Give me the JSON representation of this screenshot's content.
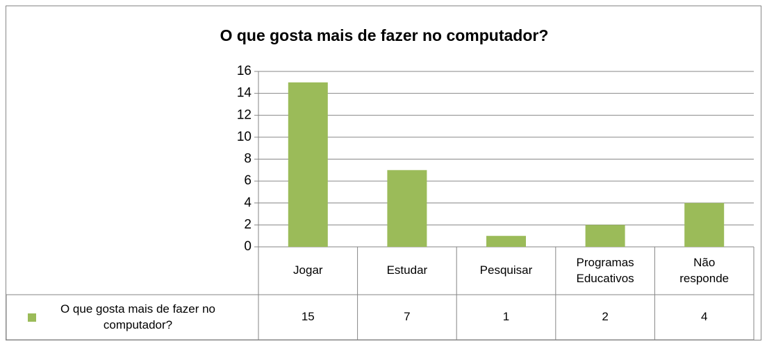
{
  "chart_data": {
    "type": "bar",
    "title": "O que gosta mais de fazer no computador?",
    "categories": [
      "Jogar",
      "Estudar",
      "Pesquisar",
      "Programas Educativos",
      "Não responde"
    ],
    "series": [
      {
        "name": "O que gosta mais de fazer no computador?",
        "color": "#9bbb59",
        "values": [
          15,
          7,
          1,
          2,
          4
        ]
      }
    ],
    "ylim": [
      0,
      16
    ],
    "yticks": [
      0,
      2,
      4,
      6,
      8,
      10,
      12,
      14,
      16
    ],
    "grid": true,
    "data_table": true
  }
}
